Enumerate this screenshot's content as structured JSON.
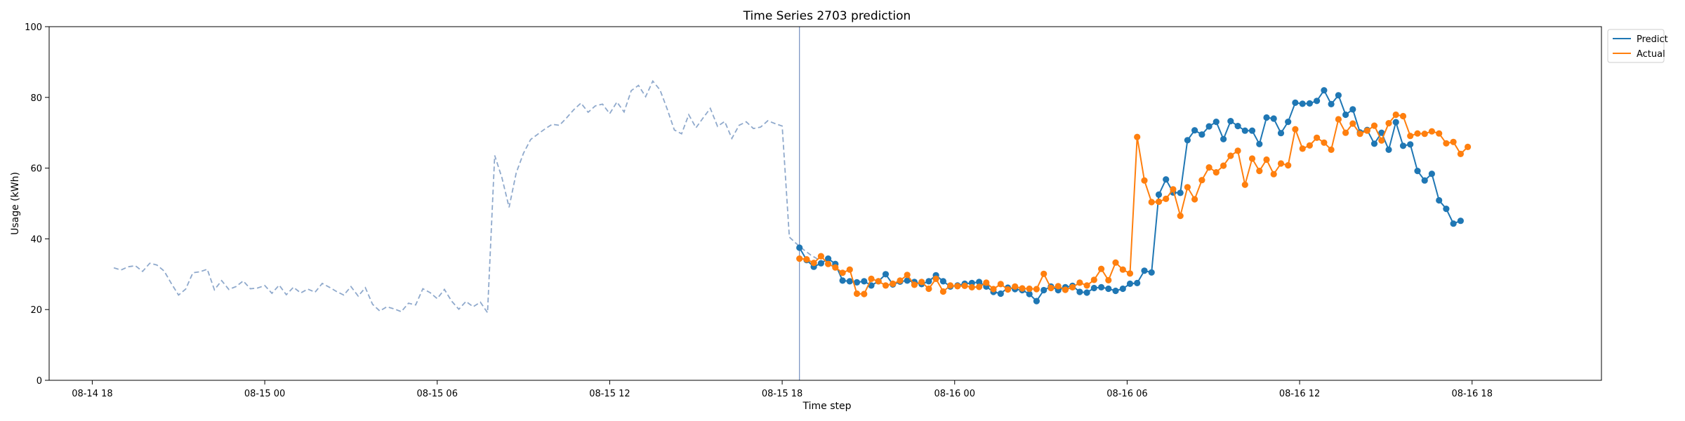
{
  "chart_data": {
    "type": "line",
    "title": "Time Series 2703 prediction",
    "xlabel": "Time step",
    "ylabel": "Usage (kWh)",
    "ylim": [
      0,
      100
    ],
    "yticks": [
      0,
      20,
      40,
      60,
      80,
      100
    ],
    "xlim_hours": [
      -1.5,
      52.5
    ],
    "xticks": [
      {
        "label": "08-14 18",
        "hour": 0
      },
      {
        "label": "08-15 00",
        "hour": 6
      },
      {
        "label": "08-15 06",
        "hour": 12
      },
      {
        "label": "08-15 12",
        "hour": 18
      },
      {
        "label": "08-15 18",
        "hour": 24
      },
      {
        "label": "08-16 00",
        "hour": 30
      },
      {
        "label": "08-16 06",
        "hour": 36
      },
      {
        "label": "08-16 12",
        "hour": 42
      },
      {
        "label": "08-16 18",
        "hour": 48
      }
    ],
    "grid": false,
    "legend_position": "top-right",
    "forecast_start_hour": 24.6,
    "step_hours": 0.25,
    "history": {
      "start_hour": 0.75,
      "color": "#8fa9cc",
      "style": "dashed",
      "values": [
        31.8,
        31.2,
        32.1,
        32.4,
        30.8,
        33.1,
        32.6,
        30.9,
        27.4,
        24.1,
        25.8,
        30.4,
        30.7,
        31.4,
        25.6,
        28.2,
        25.7,
        26.5,
        28.1,
        25.9,
        26.1,
        26.8,
        24.6,
        26.9,
        24.2,
        26.3,
        24.7,
        25.8,
        24.9,
        27.4,
        26.3,
        25.1,
        24.1,
        26.5,
        23.8,
        26.2,
        21.5,
        19.6,
        20.8,
        20.2,
        19.4,
        21.8,
        21.3,
        25.9,
        24.8,
        23.1,
        25.7,
        22.4,
        20.1,
        22.3,
        20.8,
        22.1,
        19.1,
        63.6,
        57.3,
        48.9,
        58.7,
        64.2,
        68.1,
        69.6,
        71.1,
        72.4,
        72.1,
        74.2,
        76.5,
        78.4,
        75.8,
        77.6,
        78.1,
        75.4,
        78.7,
        75.9,
        81.9,
        83.4,
        80.2,
        84.6,
        82.1,
        76.7,
        70.8,
        69.7,
        75.1,
        71.4,
        74.2,
        76.9,
        71.8,
        73.2,
        68.4,
        72.1,
        73.1,
        71.2,
        71.6,
        73.4,
        72.6,
        71.9,
        40.5,
        38.6,
        36.9,
        35.4,
        34.2
      ]
    },
    "series": [
      {
        "name": "Predict",
        "color": "#1f77b4",
        "values": [
          37.5,
          34.0,
          32.1,
          33.1,
          34.4,
          32.9,
          28.2,
          28.0,
          27.7,
          28.0,
          26.8,
          28.0,
          30.0,
          27.1,
          27.9,
          28.2,
          27.8,
          27.2,
          28.0,
          29.7,
          28.0,
          26.5,
          26.8,
          27.3,
          27.5,
          27.8,
          26.5,
          25.0,
          24.5,
          26.2,
          25.8,
          25.5,
          24.4,
          22.4,
          25.5,
          26.5,
          25.5,
          26.3,
          26.7,
          25.0,
          24.8,
          26.1,
          26.3,
          25.9,
          25.3,
          25.9,
          27.3,
          27.5,
          31.0,
          30.5,
          52.5,
          56.8,
          53.1,
          53.0,
          67.9,
          70.7,
          69.5,
          71.8,
          73.1,
          68.2,
          73.3,
          71.9,
          70.6,
          70.6,
          66.8,
          74.3,
          74.0,
          69.9,
          73.1,
          78.5,
          78.2,
          78.3,
          79.0,
          82.0,
          78.1,
          80.6,
          75.1,
          76.6,
          70.1,
          70.8,
          66.9,
          70.0,
          65.2,
          73.0,
          66.3,
          66.7,
          59.2,
          56.5,
          58.4,
          50.9,
          48.5,
          44.3,
          45.1
        ]
      },
      {
        "name": "Actual",
        "color": "#ff7f0e",
        "values": [
          34.4,
          34.2,
          33.2,
          35.1,
          32.9,
          31.9,
          30.4,
          31.3,
          24.5,
          24.4,
          28.7,
          28.0,
          26.8,
          27.3,
          28.2,
          29.8,
          27.0,
          27.8,
          25.9,
          28.7,
          25.1,
          26.8,
          26.6,
          26.7,
          26.3,
          26.4,
          27.6,
          25.8,
          27.2,
          25.7,
          26.5,
          26.0,
          25.9,
          25.8,
          30.1,
          26.1,
          26.6,
          25.6,
          26.3,
          27.6,
          26.8,
          28.4,
          31.5,
          28.3,
          33.3,
          31.3,
          30.2,
          68.8,
          56.5,
          50.4,
          50.5,
          51.3,
          54.0,
          46.5,
          54.6,
          51.2,
          56.6,
          60.2,
          58.8,
          60.7,
          63.5,
          64.9,
          55.3,
          62.7,
          59.2,
          62.4,
          58.3,
          61.3,
          60.8,
          71.0,
          65.5,
          66.4,
          68.6,
          67.2,
          65.2,
          73.8,
          70.0,
          72.6,
          69.7,
          70.6,
          72.0,
          67.8,
          72.7,
          75.1,
          74.7,
          69.1,
          69.8,
          69.7,
          70.4,
          69.8,
          67.0,
          67.4,
          64.0,
          66.0
        ]
      }
    ]
  }
}
